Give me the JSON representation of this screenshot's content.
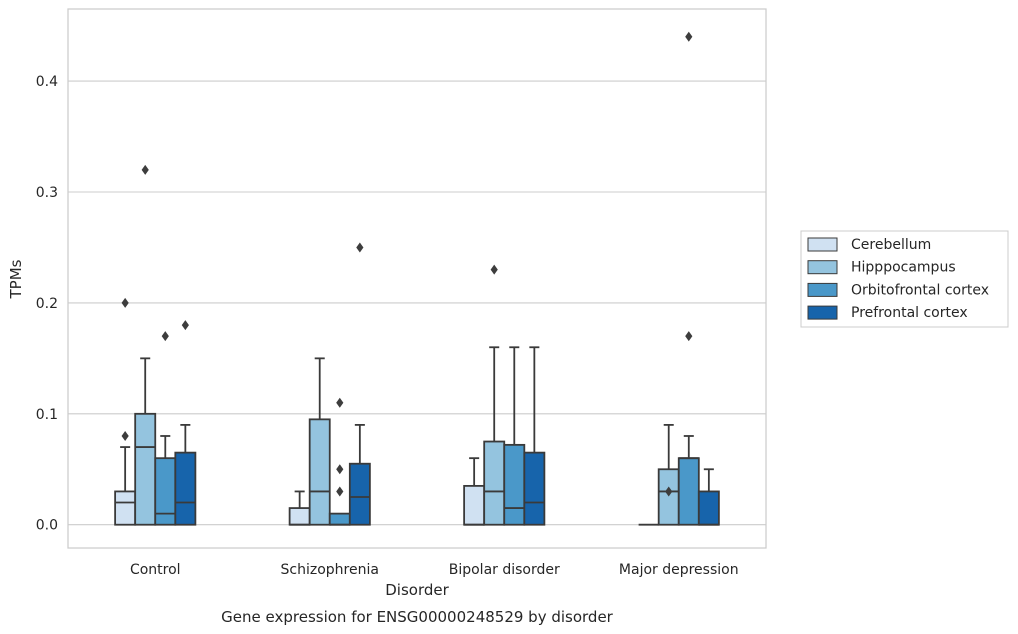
{
  "chart_data": {
    "type": "box",
    "title": "Gene expression for ENSG00000248529 by disorder",
    "xlabel": "Disorder",
    "ylabel": "TPMs",
    "ylim": [
      -0.021,
      0.465
    ],
    "yticks": [
      0.0,
      0.1,
      0.2,
      0.3,
      0.4
    ],
    "ytick_labels": [
      "0.0",
      "0.1",
      "0.2",
      "0.3",
      "0.4"
    ],
    "grid": "horizontal",
    "legend_position": "right",
    "categories": [
      "Control",
      "Schizophrenia",
      "Bipolar disorder",
      "Major depression"
    ],
    "series": [
      {
        "name": "Cerebellum",
        "color": "#d0e1f2",
        "boxes": [
          {
            "category": "Control",
            "q1": 0.0,
            "median": 0.02,
            "q3": 0.03,
            "whisker_low": 0.0,
            "whisker_high": 0.07,
            "outliers": [
              0.08,
              0.2
            ]
          },
          {
            "category": "Schizophrenia",
            "q1": 0.0,
            "median": 0.0,
            "q3": 0.015,
            "whisker_low": 0.0,
            "whisker_high": 0.03,
            "outliers": []
          },
          {
            "category": "Bipolar disorder",
            "q1": 0.0,
            "median": 0.0,
            "q3": 0.035,
            "whisker_low": 0.0,
            "whisker_high": 0.06,
            "outliers": []
          },
          {
            "category": "Major depression",
            "q1": 0.0,
            "median": 0.0,
            "q3": 0.0,
            "whisker_low": 0.0,
            "whisker_high": 0.0,
            "outliers": []
          }
        ]
      },
      {
        "name": "Hipppocampus",
        "color": "#94c4df",
        "boxes": [
          {
            "category": "Control",
            "q1": 0.0,
            "median": 0.07,
            "q3": 0.1,
            "whisker_low": 0.0,
            "whisker_high": 0.15,
            "outliers": [
              0.32
            ]
          },
          {
            "category": "Schizophrenia",
            "q1": 0.0,
            "median": 0.03,
            "q3": 0.095,
            "whisker_low": 0.0,
            "whisker_high": 0.15,
            "outliers": []
          },
          {
            "category": "Bipolar disorder",
            "q1": 0.0,
            "median": 0.03,
            "q3": 0.075,
            "whisker_low": 0.0,
            "whisker_high": 0.16,
            "outliers": [
              0.23
            ]
          },
          {
            "category": "Major depression",
            "q1": 0.0,
            "median": 0.03,
            "q3": 0.05,
            "whisker_low": 0.0,
            "whisker_high": 0.09,
            "outliers": [
              0.03
            ]
          }
        ]
      },
      {
        "name": "Orbitofrontal cortex",
        "color": "#4a98c9",
        "boxes": [
          {
            "category": "Control",
            "q1": 0.0,
            "median": 0.01,
            "q3": 0.06,
            "whisker_low": 0.0,
            "whisker_high": 0.08,
            "outliers": [
              0.17
            ]
          },
          {
            "category": "Schizophrenia",
            "q1": 0.0,
            "median": 0.0,
            "q3": 0.01,
            "whisker_low": 0.0,
            "whisker_high": 0.01,
            "outliers": [
              0.03,
              0.05,
              0.11
            ]
          },
          {
            "category": "Bipolar disorder",
            "q1": 0.0,
            "median": 0.015,
            "q3": 0.072,
            "whisker_low": 0.0,
            "whisker_high": 0.16,
            "outliers": []
          },
          {
            "category": "Major depression",
            "q1": 0.0,
            "median": 0.06,
            "q3": 0.06,
            "whisker_low": 0.0,
            "whisker_high": 0.08,
            "outliers": [
              0.17,
              0.44
            ]
          }
        ]
      },
      {
        "name": "Prefrontal cortex",
        "color": "#1764ab",
        "boxes": [
          {
            "category": "Control",
            "q1": 0.0,
            "median": 0.02,
            "q3": 0.065,
            "whisker_low": 0.0,
            "whisker_high": 0.09,
            "outliers": [
              0.18
            ]
          },
          {
            "category": "Schizophrenia",
            "q1": 0.0,
            "median": 0.025,
            "q3": 0.055,
            "whisker_low": 0.0,
            "whisker_high": 0.09,
            "outliers": [
              0.25
            ]
          },
          {
            "category": "Bipolar disorder",
            "q1": 0.0,
            "median": 0.02,
            "q3": 0.065,
            "whisker_low": 0.0,
            "whisker_high": 0.16,
            "outliers": []
          },
          {
            "category": "Major depression",
            "q1": 0.0,
            "median": 0.0,
            "q3": 0.03,
            "whisker_low": 0.0,
            "whisker_high": 0.05,
            "outliers": []
          }
        ]
      }
    ]
  }
}
